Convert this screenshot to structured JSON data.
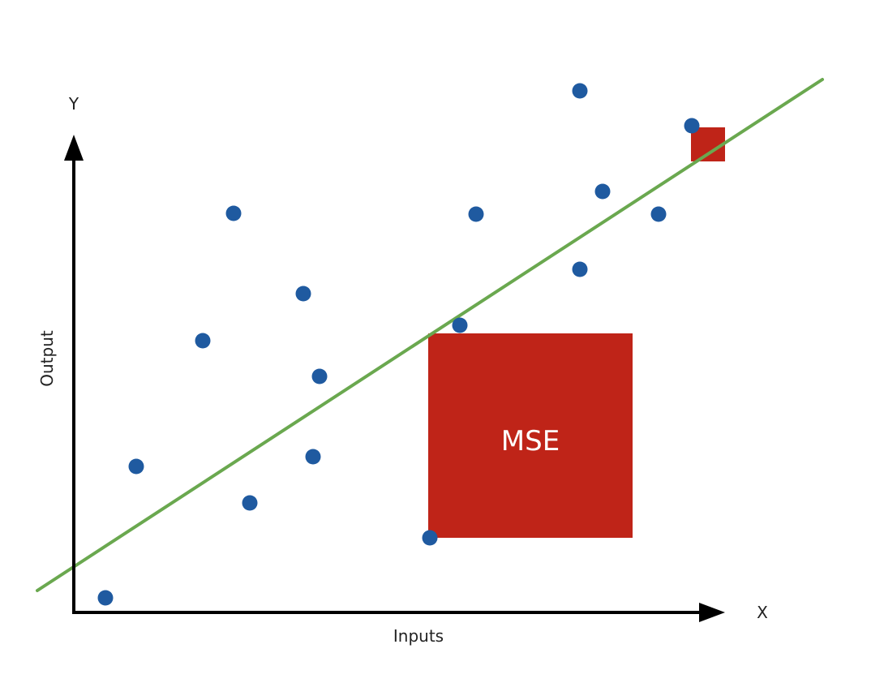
{
  "diagram": {
    "y_axis_letter": "Y",
    "x_axis_letter": "X",
    "y_axis_title": "Output",
    "x_axis_title": "Inputs",
    "error_box_label": "MSE",
    "colors": {
      "axis": "#000000",
      "points": "#1f5aa0",
      "fit_line": "#6aa84f",
      "error_square": "#bf2418",
      "label_text": "#222222",
      "error_label_text": "#ffffff"
    }
  }
}
